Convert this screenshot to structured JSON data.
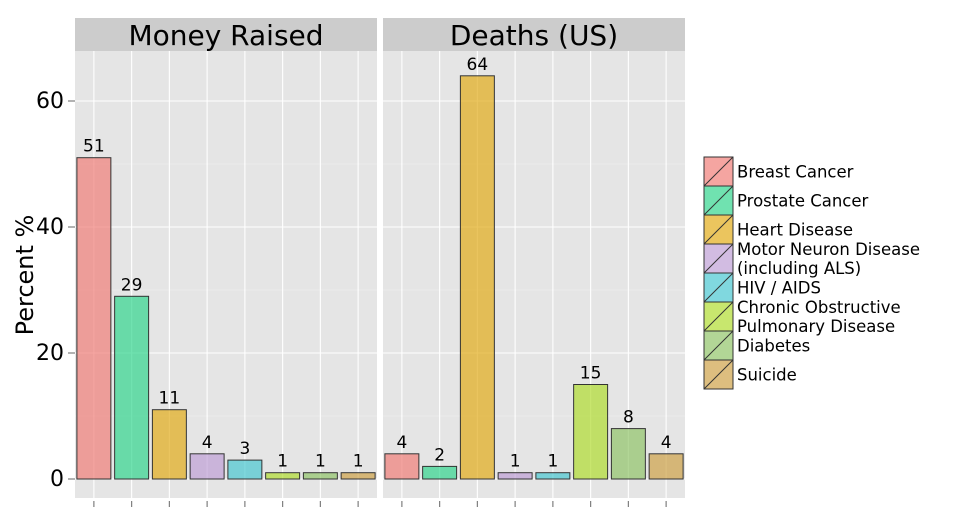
{
  "chart_data": {
    "type": "bar",
    "ylabel": "Percent  %",
    "ylim": [
      0,
      70
    ],
    "yticks": [
      0,
      20,
      40,
      60
    ],
    "grid": true,
    "legend_position": "right",
    "categories": [
      "Breast Cancer",
      "Prostate Cancer",
      "Heart Disease",
      "Motor Neuron Disease (including ALS)",
      "HIV / AIDS",
      "Chronic Obstructive Pulmonary Disease",
      "Diabetes",
      "Suicide"
    ],
    "legend": {
      "entries": [
        {
          "lines": [
            "Breast Cancer"
          ],
          "color": "#F17F79"
        },
        {
          "lines": [
            "Prostate Cancer"
          ],
          "color": "#33D68E"
        },
        {
          "lines": [
            "Heart Disease"
          ],
          "color": "#E2AC19"
        },
        {
          "lines": [
            "Motor Neuron Disease",
            "(including ALS)"
          ],
          "color": "#BFA0D6"
        },
        {
          "lines": [
            "HIV / AIDS"
          ],
          "color": "#4AC8D2"
        },
        {
          "lines": [
            "Chronic Obstructive",
            "Pulmonary Disease"
          ],
          "color": "#B1DD31"
        },
        {
          "lines": [
            "Diabetes"
          ],
          "color": "#92C56A"
        },
        {
          "lines": [
            "Suicide"
          ],
          "color": "#CEA249"
        }
      ]
    },
    "facets": [
      {
        "title": "Money Raised",
        "values": [
          51,
          29,
          11,
          4,
          3,
          1,
          1,
          1
        ]
      },
      {
        "title": "Deaths (US)",
        "values": [
          4,
          2,
          64,
          1,
          1,
          15,
          8,
          4
        ]
      }
    ]
  }
}
